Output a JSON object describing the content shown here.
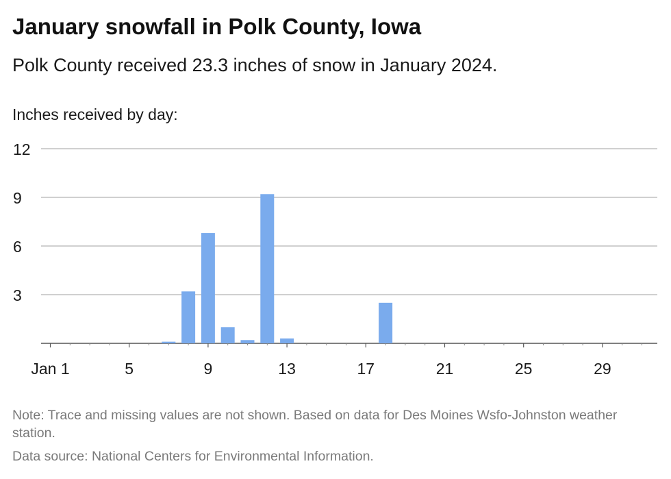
{
  "title": "January snowfall in Polk County, Iowa",
  "subtitle": "Polk County received 23.3 inches of snow in January 2024.",
  "note": "Note: Trace and missing values are not shown. Based on data for Des Moines Wsfo-Johnston weather station.",
  "source": "Data source: National Centers for Environmental Information.",
  "chart_data": {
    "type": "bar",
    "ylabel": "Inches received by day:",
    "ylim": [
      0,
      12
    ],
    "y_ticks": [
      3,
      6,
      9,
      12
    ],
    "x_ticks": [
      {
        "day": 1,
        "label": "Jan 1"
      },
      {
        "day": 5,
        "label": "5"
      },
      {
        "day": 9,
        "label": "9"
      },
      {
        "day": 13,
        "label": "13"
      },
      {
        "day": 17,
        "label": "17"
      },
      {
        "day": 21,
        "label": "21"
      },
      {
        "day": 25,
        "label": "25"
      },
      {
        "day": 29,
        "label": "29"
      }
    ],
    "grid": true,
    "bar_color": "#7aabed",
    "series": [
      {
        "values": [
          {
            "day": 7,
            "value": 0.1
          },
          {
            "day": 8,
            "value": 3.2
          },
          {
            "day": 9,
            "value": 6.8
          },
          {
            "day": 10,
            "value": 1.0
          },
          {
            "day": 11,
            "value": 0.2
          },
          {
            "day": 12,
            "value": 9.2
          },
          {
            "day": 13,
            "value": 0.3
          },
          {
            "day": 18,
            "value": 2.5
          }
        ]
      }
    ]
  }
}
